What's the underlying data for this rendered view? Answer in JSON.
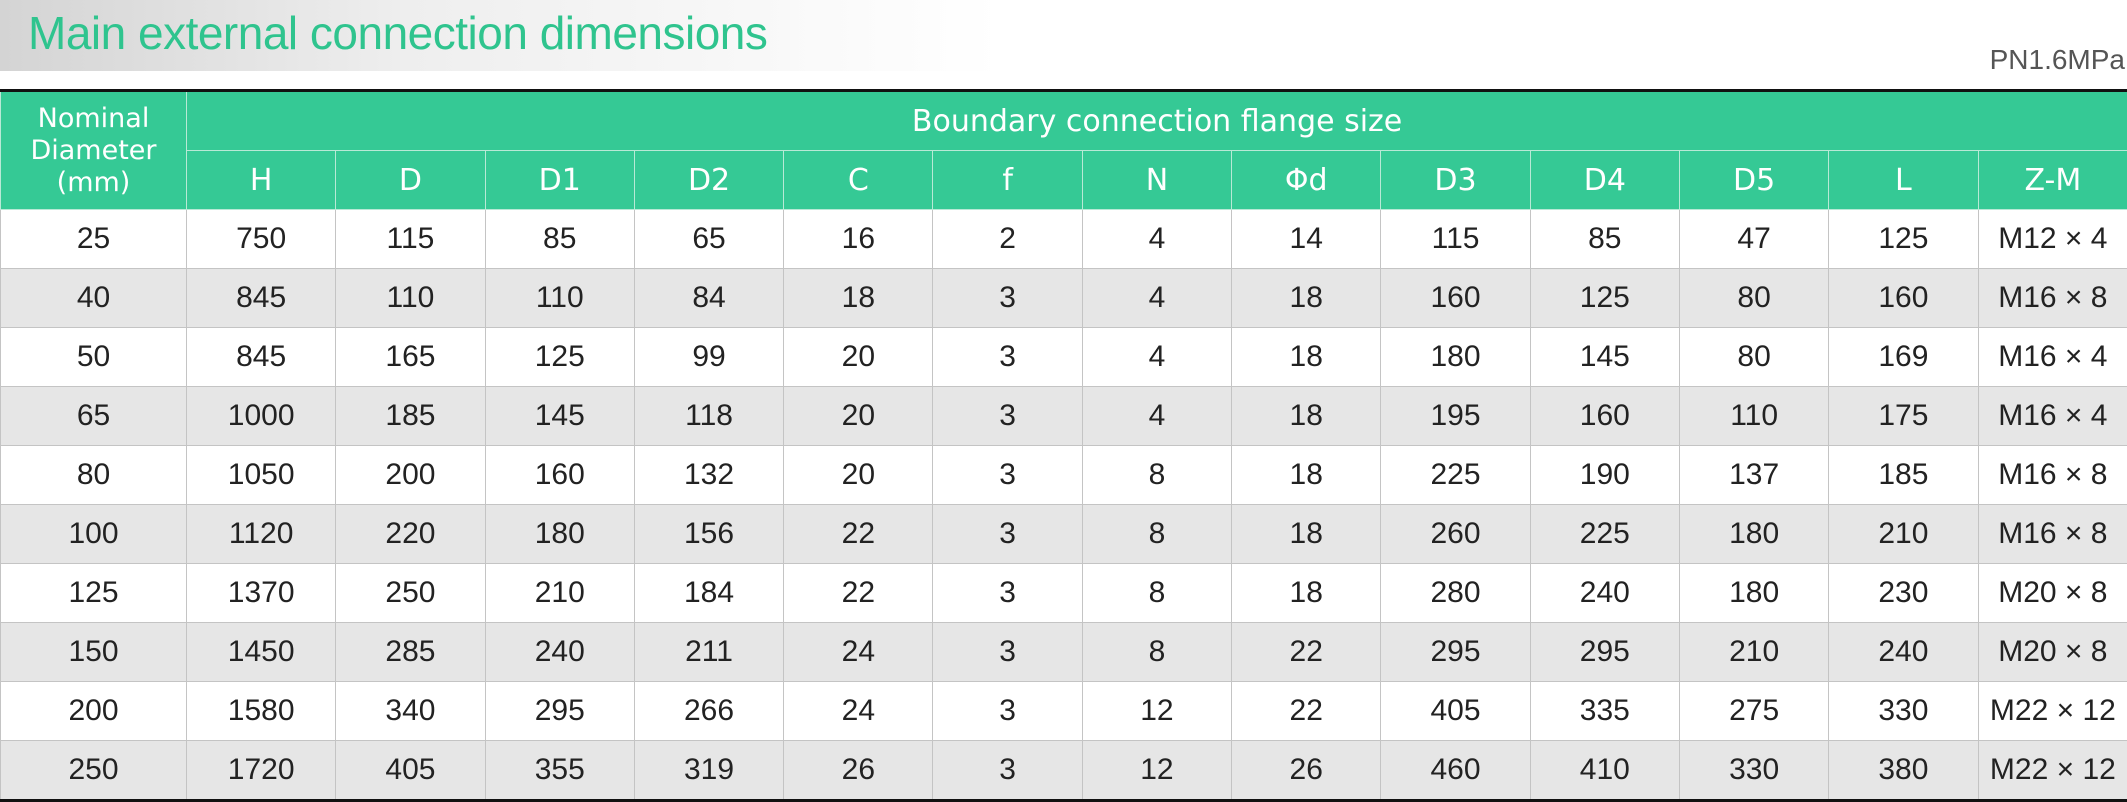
{
  "header": {
    "title": "Main external connection dimensions",
    "pressure": "PN1.6MPa"
  },
  "table": {
    "first_header": "Nominal Diameter (mm)",
    "group_header": "Boundary connection flange size",
    "columns": [
      "H",
      "D",
      "D1",
      "D2",
      "C",
      "f",
      "N",
      "Φd",
      "D3",
      "D4",
      "D5",
      "L",
      "Z-M"
    ],
    "rows": [
      [
        "25",
        "750",
        "115",
        "85",
        "65",
        "16",
        "2",
        "4",
        "14",
        "115",
        "85",
        "47",
        "125",
        "M12 × 4"
      ],
      [
        "40",
        "845",
        "110",
        "110",
        "84",
        "18",
        "3",
        "4",
        "18",
        "160",
        "125",
        "80",
        "160",
        "M16 × 8"
      ],
      [
        "50",
        "845",
        "165",
        "125",
        "99",
        "20",
        "3",
        "4",
        "18",
        "180",
        "145",
        "80",
        "169",
        "M16 × 4"
      ],
      [
        "65",
        "1000",
        "185",
        "145",
        "118",
        "20",
        "3",
        "4",
        "18",
        "195",
        "160",
        "110",
        "175",
        "M16 × 4"
      ],
      [
        "80",
        "1050",
        "200",
        "160",
        "132",
        "20",
        "3",
        "8",
        "18",
        "225",
        "190",
        "137",
        "185",
        "M16 × 8"
      ],
      [
        "100",
        "1120",
        "220",
        "180",
        "156",
        "22",
        "3",
        "8",
        "18",
        "260",
        "225",
        "180",
        "210",
        "M16 × 8"
      ],
      [
        "125",
        "1370",
        "250",
        "210",
        "184",
        "22",
        "3",
        "8",
        "18",
        "280",
        "240",
        "180",
        "230",
        "M20 × 8"
      ],
      [
        "150",
        "1450",
        "285",
        "240",
        "211",
        "24",
        "3",
        "8",
        "22",
        "295",
        "295",
        "210",
        "240",
        "M20 × 8"
      ],
      [
        "200",
        "1580",
        "340",
        "295",
        "266",
        "24",
        "3",
        "12",
        "22",
        "405",
        "335",
        "275",
        "330",
        "M22 × 12"
      ],
      [
        "250",
        "1720",
        "405",
        "355",
        "319",
        "26",
        "3",
        "12",
        "26",
        "460",
        "410",
        "330",
        "380",
        "M22 × 12"
      ]
    ]
  }
}
